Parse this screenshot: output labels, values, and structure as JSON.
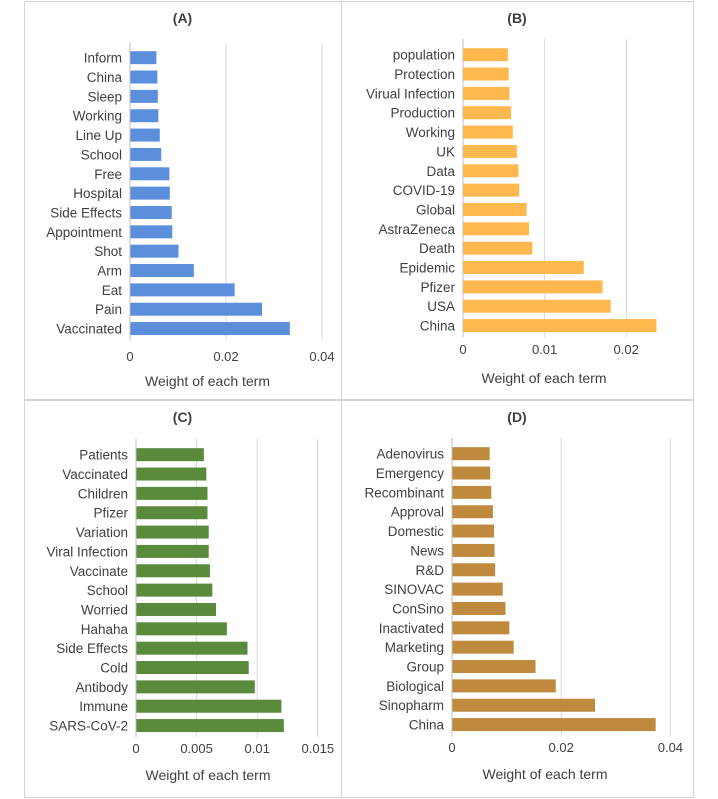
{
  "chart_data": [
    {
      "type": "bar",
      "orientation": "horizontal",
      "title": "(A)",
      "xlabel": "Weight of each term",
      "ylabel": "",
      "xlim": [
        0,
        0.045
      ],
      "xticks": [
        0,
        0.02,
        0.04
      ],
      "xtick_labels": [
        "0",
        "0.02",
        "0.04"
      ],
      "grid": true,
      "color": "#5b8fdc",
      "categories": [
        "Inform",
        "China",
        "Sleep",
        "Working",
        "Line Up",
        "School",
        "Free",
        "Hospital",
        "Side Effects",
        "Appointment",
        "Shot",
        "Arm",
        "Eat",
        "Pain",
        "Vaccinated"
      ],
      "values": [
        0.0055,
        0.0057,
        0.0058,
        0.0059,
        0.0062,
        0.0065,
        0.0082,
        0.0083,
        0.0087,
        0.0088,
        0.0101,
        0.0133,
        0.0218,
        0.0275,
        0.0333
      ]
    },
    {
      "type": "bar",
      "orientation": "horizontal",
      "title": "(B)",
      "xlabel": "Weight of each term",
      "ylabel": "",
      "xlim": [
        0,
        0.025
      ],
      "xticks": [
        0,
        0.01,
        0.02
      ],
      "xtick_labels": [
        "0",
        "0.01",
        "0.02"
      ],
      "grid": true,
      "color": "#ffb84d",
      "categories": [
        "population",
        "Protection",
        "Virual Infection",
        "Production",
        "Working",
        "UK",
        "Data",
        "COVID-19",
        "Global",
        "AstraZeneca",
        "Death",
        "Epidemic",
        "Pfizer",
        "USA",
        "China"
      ],
      "values": [
        0.0055,
        0.0056,
        0.0057,
        0.0059,
        0.0061,
        0.0066,
        0.0068,
        0.0069,
        0.0078,
        0.0081,
        0.0085,
        0.0148,
        0.0171,
        0.0181,
        0.0237
      ]
    },
    {
      "type": "bar",
      "orientation": "horizontal",
      "title": "(C)",
      "xlabel": "Weight of each term",
      "ylabel": "",
      "xlim": [
        0,
        0.017
      ],
      "xticks": [
        0,
        0.005,
        0.01,
        0.015
      ],
      "xtick_labels": [
        "0",
        "0.005",
        "0.01",
        "0.015"
      ],
      "grid": true,
      "color": "#5a8a3c",
      "categories": [
        "Patients",
        "Vaccinated",
        "Children",
        "Pfizer",
        "Variation",
        "Viral Infection",
        "Vaccinate",
        "School",
        "Worried",
        "Hahaha",
        "Side Effects",
        "Cold",
        "Antibody",
        "Immune",
        "SARS-CoV-2"
      ],
      "values": [
        0.0056,
        0.0058,
        0.0059,
        0.0059,
        0.006,
        0.006,
        0.0061,
        0.0063,
        0.0066,
        0.0075,
        0.0092,
        0.0093,
        0.0098,
        0.012,
        0.0122
      ]
    },
    {
      "type": "bar",
      "orientation": "horizontal",
      "title": "(D)",
      "xlabel": "Weight of each term",
      "ylabel": "",
      "xlim": [
        0,
        0.045
      ],
      "xticks": [
        0,
        0.02,
        0.04
      ],
      "xtick_labels": [
        "0",
        "0.02",
        "0.04"
      ],
      "grid": true,
      "color": "#bf8a3e",
      "categories": [
        "Adenovirus",
        "Emergency",
        "Recombinant",
        "Approval",
        "Domestic",
        "News",
        "R&D",
        "SINOVAC",
        "ConSino",
        "Inactivated",
        "Marketing",
        "Group",
        "Biological",
        "Sinopharm",
        "China"
      ],
      "values": [
        0.0069,
        0.007,
        0.0072,
        0.0075,
        0.0077,
        0.0078,
        0.0079,
        0.0093,
        0.0098,
        0.0105,
        0.0113,
        0.0153,
        0.019,
        0.0262,
        0.0373
      ]
    }
  ]
}
